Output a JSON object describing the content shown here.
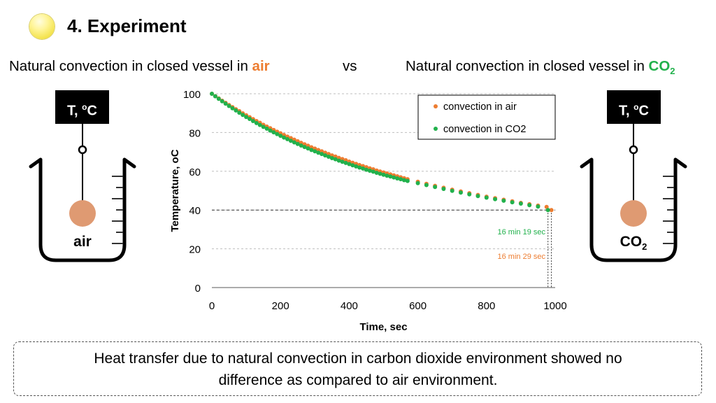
{
  "slide": {
    "title": "4. Experiment",
    "left_heading": {
      "text": "Natural convection in closed vessel in ",
      "accent": "air"
    },
    "vs": "vs",
    "right_heading": {
      "text": "Natural convection in closed vessel in ",
      "accent": "CO",
      "accent_sub": "2"
    },
    "colors": {
      "air": "#ed7d31",
      "co2": "#21b14c"
    }
  },
  "left_beaker": {
    "sensor_label": "T, ",
    "sensor_sup": "o",
    "sensor_unit": "C",
    "medium": "air"
  },
  "right_beaker": {
    "sensor_label": "T, ",
    "sensor_sup": "o",
    "sensor_unit": "C",
    "medium": "CO",
    "medium_sub": "2"
  },
  "chart_data": {
    "type": "scatter",
    "xlabel": "Time, sec",
    "ylabel": "Temperature, oC",
    "xlim": [
      0,
      1000
    ],
    "ylim": [
      0,
      100
    ],
    "xticks": [
      0,
      200,
      400,
      600,
      800,
      1000
    ],
    "yticks": [
      0,
      20,
      40,
      60,
      80,
      100
    ],
    "grid": "horizontal",
    "legend_position": "top-right",
    "reference_line_y": 40,
    "series": [
      {
        "name": "convection in air",
        "color": "#ed7d31",
        "x": [
          0,
          10,
          20,
          30,
          40,
          50,
          60,
          70,
          80,
          90,
          100,
          110,
          120,
          130,
          140,
          150,
          160,
          170,
          180,
          190,
          200,
          210,
          220,
          230,
          240,
          250,
          260,
          270,
          280,
          290,
          300,
          310,
          320,
          330,
          340,
          350,
          360,
          370,
          380,
          390,
          400,
          410,
          420,
          430,
          440,
          450,
          460,
          470,
          480,
          490,
          500,
          510,
          520,
          530,
          540,
          550,
          560,
          570,
          600,
          625,
          650,
          675,
          700,
          725,
          750,
          775,
          800,
          825,
          850,
          875,
          900,
          925,
          950,
          975,
          989
        ],
        "y": [
          100,
          98.8,
          97.6,
          96.4,
          95.3,
          94.2,
          93.1,
          92.0,
          91.0,
          89.9,
          88.9,
          87.9,
          86.9,
          85.9,
          85.0,
          84.0,
          83.1,
          82.2,
          81.3,
          80.4,
          79.6,
          78.7,
          77.9,
          77.1,
          76.3,
          75.5,
          74.7,
          73.9,
          73.2,
          72.4,
          71.7,
          71.0,
          70.3,
          69.6,
          68.9,
          68.2,
          67.6,
          66.9,
          66.3,
          65.7,
          65.0,
          64.4,
          63.8,
          63.2,
          62.7,
          62.1,
          61.5,
          61.0,
          60.4,
          59.9,
          59.4,
          58.9,
          58.4,
          57.9,
          57.4,
          56.9,
          56.4,
          55.9,
          54.6,
          53.5,
          52.5,
          51.5,
          50.5,
          49.6,
          48.7,
          47.8,
          46.9,
          46.1,
          45.3,
          44.5,
          43.7,
          43.0,
          42.3,
          41.6,
          40.0
        ]
      },
      {
        "name": "convection in CO2",
        "color": "#21b14c",
        "x": [
          0,
          10,
          20,
          30,
          40,
          50,
          60,
          70,
          80,
          90,
          100,
          110,
          120,
          130,
          140,
          150,
          160,
          170,
          180,
          190,
          200,
          210,
          220,
          230,
          240,
          250,
          260,
          270,
          280,
          290,
          300,
          310,
          320,
          330,
          340,
          350,
          360,
          370,
          380,
          390,
          400,
          410,
          420,
          430,
          440,
          450,
          460,
          470,
          480,
          490,
          500,
          510,
          520,
          530,
          540,
          550,
          560,
          570,
          600,
          625,
          650,
          675,
          700,
          725,
          750,
          775,
          800,
          825,
          850,
          875,
          900,
          925,
          950,
          979
        ],
        "y": [
          100,
          98.7,
          97.4,
          96.1,
          94.9,
          93.7,
          92.5,
          91.4,
          90.2,
          89.1,
          88.0,
          87.0,
          85.9,
          84.9,
          83.9,
          82.9,
          82.0,
          81.0,
          80.1,
          79.2,
          78.3,
          77.4,
          76.6,
          75.7,
          74.9,
          74.1,
          73.3,
          72.5,
          71.8,
          71.0,
          70.3,
          69.6,
          68.9,
          68.2,
          67.5,
          66.8,
          66.2,
          65.5,
          64.9,
          64.3,
          63.7,
          63.1,
          62.5,
          61.9,
          61.4,
          60.8,
          60.3,
          59.8,
          59.2,
          58.7,
          58.2,
          57.7,
          57.3,
          56.8,
          56.3,
          55.9,
          55.4,
          55.0,
          53.9,
          52.9,
          51.9,
          50.9,
          49.9,
          49.0,
          48.1,
          47.2,
          46.4,
          45.6,
          44.8,
          44.0,
          43.3,
          42.5,
          41.8,
          40.0
        ]
      }
    ],
    "annotations": [
      {
        "text": "16 min 19 sec",
        "x": 979,
        "series": "convection in CO2"
      },
      {
        "text": "16 min 29 sec",
        "x": 989,
        "series": "convection in air"
      }
    ]
  },
  "footer": {
    "line1": "Heat transfer due to natural convection in carbon dioxide environment showed no",
    "line2": "difference as compared to air environment."
  }
}
